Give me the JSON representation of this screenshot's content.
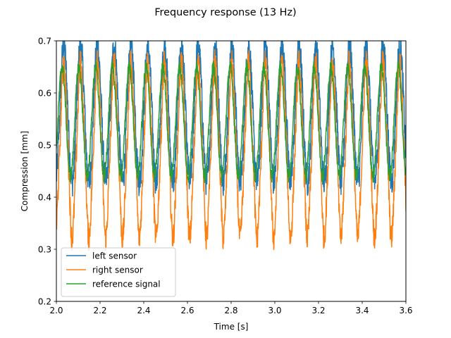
{
  "chart_data": {
    "type": "line",
    "title": "Frequency response (13 Hz)",
    "xlabel": "Time [s]",
    "ylabel": "Compression [mm]",
    "xlim": [
      2.0,
      3.6
    ],
    "ylim": [
      0.2,
      0.7
    ],
    "xticks": [
      "2.0",
      "2.2",
      "2.4",
      "2.6",
      "2.8",
      "3.0",
      "3.2",
      "3.4",
      "3.6"
    ],
    "yticks": [
      "0.2",
      "0.3",
      "0.4",
      "0.5",
      "0.6",
      "0.7"
    ],
    "grid": false,
    "legend_position": "lower-left",
    "series": [
      {
        "name": "left sensor",
        "color": "#1f77b4",
        "frequency_hz": 13,
        "min": 0.43,
        "max": 0.69,
        "phase_offset_s": 0.0
      },
      {
        "name": "right sensor",
        "color": "#ff7f0e",
        "frequency_hz": 13,
        "min": 0.33,
        "max": 0.65,
        "phase_offset_s": 0.0
      },
      {
        "name": "reference signal",
        "color": "#2ca02c",
        "frequency_hz": 13,
        "min": 0.44,
        "max": 0.65,
        "phase_offset_s": -0.008
      }
    ]
  }
}
